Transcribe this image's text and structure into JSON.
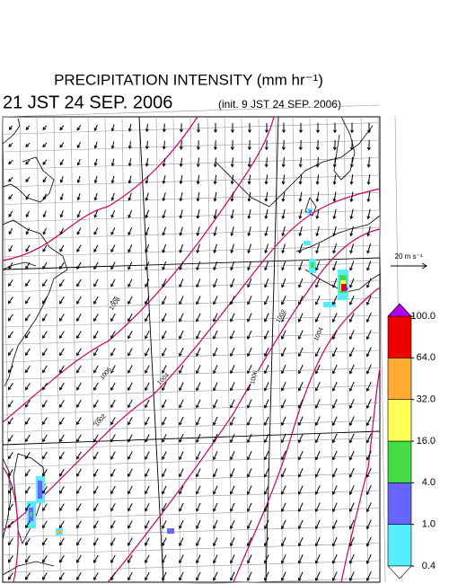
{
  "title": "PRECIPITATION INTENSITY (mm hr⁻¹)",
  "valid_time": "21 JST 24 SEP. 2006",
  "init_time": "(init. 9 JST 24 SEP. 2006)",
  "wind_reference": "20 m s⁻¹",
  "contour_labels": [
    "1008",
    "1006",
    "1004",
    "1002",
    "1006",
    "1004",
    "1002"
  ],
  "colorbar": {
    "levels": [
      {
        "value": 0.4,
        "label": "0.4"
      },
      {
        "value": 1,
        "label": "1.0"
      },
      {
        "value": 4,
        "label": "4.0"
      },
      {
        "value": 16,
        "label": "16.0"
      },
      {
        "value": 32,
        "label": "32.0"
      },
      {
        "value": 64,
        "label": "64.0"
      },
      {
        "value": 100,
        "label": "100.0"
      }
    ],
    "colors": [
      "#55eeff",
      "#6666ff",
      "#44dd44",
      "#ffff55",
      "#ffaa33",
      "#ee0000"
    ],
    "over_color": "#b000ee",
    "under_color": "#ffffff"
  }
}
